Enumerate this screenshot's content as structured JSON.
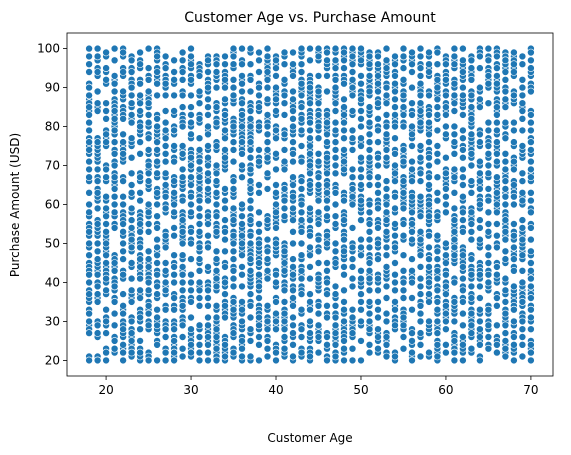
{
  "chart_data": {
    "type": "scatter",
    "title": "Customer Age vs. Purchase Amount",
    "xlabel": "Customer Age",
    "ylabel": "Purchase Amount (USD)",
    "xlim": [
      15.4,
      72.6
    ],
    "ylim": [
      16,
      104
    ],
    "xticks": [
      20,
      30,
      40,
      50,
      60,
      70
    ],
    "yticks": [
      20,
      30,
      40,
      50,
      60,
      70,
      80,
      90,
      100
    ],
    "grid": false,
    "legend": "none",
    "point_color": "#1f77b4",
    "x_domain": [
      18,
      70
    ],
    "y_domain": [
      20,
      100
    ],
    "approx_point_count": 3900
  }
}
